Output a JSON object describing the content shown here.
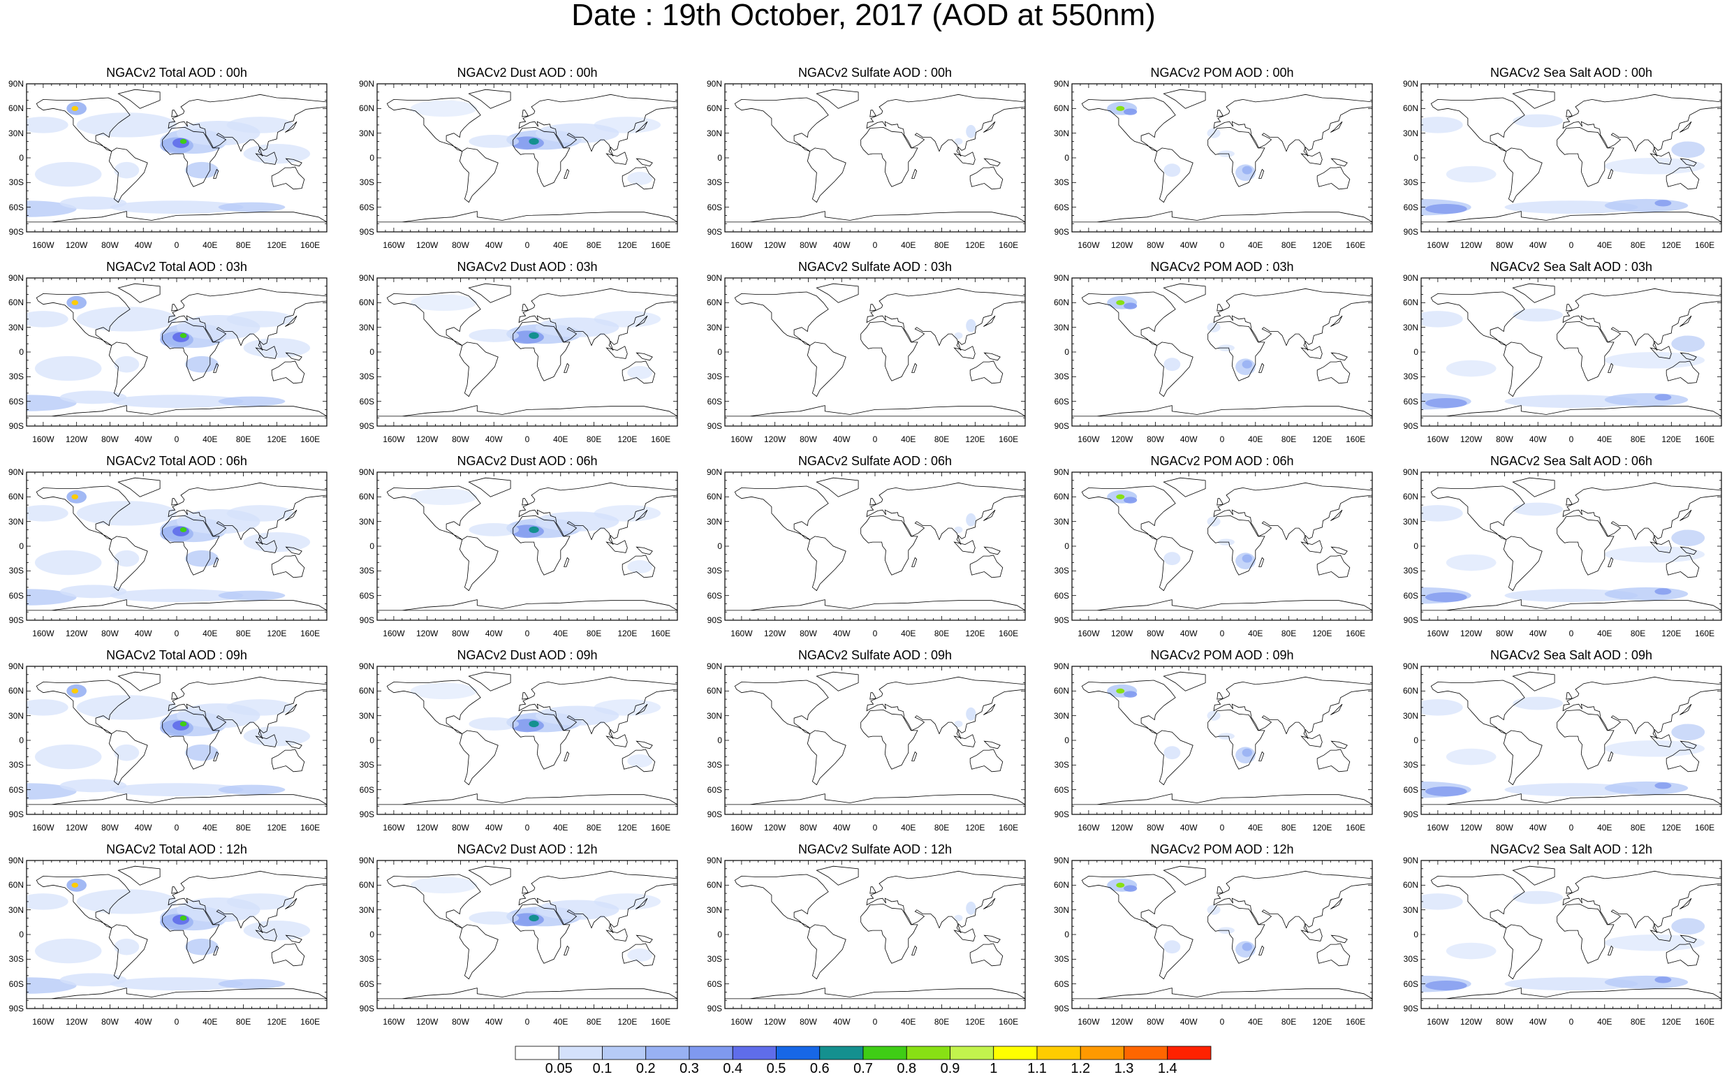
{
  "title": "Date : 19th October, 2017 (AOD at 550nm)",
  "columns": [
    "total",
    "dust",
    "sulfate",
    "pom",
    "seasalt"
  ],
  "panels": [
    [
      "NGACv2 Total AOD : 00h",
      "NGACv2 Dust AOD : 00h",
      "NGACv2 Sulfate AOD : 00h",
      "NGACv2 POM AOD : 00h",
      "NGACv2 Sea Salt AOD : 00h"
    ],
    [
      "NGACv2 Total AOD : 03h",
      "NGACv2 Dust AOD : 03h",
      "NGACv2 Sulfate AOD : 03h",
      "NGACv2 POM AOD : 03h",
      "NGACv2 Sea Salt AOD : 03h"
    ],
    [
      "NGACv2 Total AOD : 06h",
      "NGACv2 Dust AOD : 06h",
      "NGACv2 Sulfate AOD : 06h",
      "NGACv2 POM AOD : 06h",
      "NGACv2 Sea Salt AOD : 06h"
    ],
    [
      "NGACv2 Total AOD : 09h",
      "NGACv2 Dust AOD : 09h",
      "NGACv2 Sulfate AOD : 09h",
      "NGACv2 POM AOD : 09h",
      "NGACv2 Sea Salt  AOD : 09h"
    ],
    [
      "NGACv2 Total AOD :  12h",
      "NGACv2 Dust AOD : 12h",
      "NGACv2 Sulfate AOD : 12h",
      "NGACv2 POM  AOD : 12h",
      "NGACv2 Sea Salt AOD : 12h"
    ]
  ],
  "lat_ticks": [
    "90N",
    "60N",
    "30N",
    "0",
    "30S",
    "60S",
    "90S"
  ],
  "lon_ticks": [
    "160W",
    "120W",
    "80W",
    "40W",
    "0",
    "40E",
    "80E",
    "120E",
    "160E"
  ],
  "colorbar": {
    "labels": [
      "0.05",
      "0.1",
      "0.2",
      "0.3",
      "0.4",
      "0.5",
      "0.6",
      "0.7",
      "0.8",
      "0.9",
      "1",
      "1.1",
      "1.2",
      "1.3",
      "1.4"
    ],
    "colors": [
      "#ffffff",
      "#d4e1fb",
      "#b6cbf7",
      "#98b1f3",
      "#7f99ef",
      "#5f6dea",
      "#1767e6",
      "#14908f",
      "#3fcd15",
      "#88e014",
      "#c2f34d",
      "#ffff00",
      "#ffcc00",
      "#ff9900",
      "#ff6600",
      "#ff2200"
    ]
  }
}
